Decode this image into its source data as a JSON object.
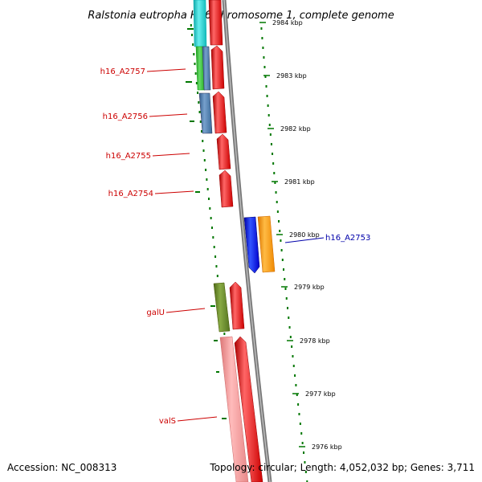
{
  "title": "Ralstonia eutropha H16 chromosome 1, complete genome",
  "footer": {
    "accession": "Accession: NC_008313",
    "topology": "Topology: circular; Length: 4,052,032 bp; Genes: 3,711"
  },
  "ticks": [
    "2984 kbp",
    "2983 kbp",
    "2982 kbp",
    "2981 kbp",
    "2980 kbp",
    "2979 kbp",
    "2978 kbp",
    "2977 kbp",
    "2976 kbp"
  ],
  "labels": [
    {
      "text": "h16_A2757",
      "color": "#cc0000"
    },
    {
      "text": "h16_A2756",
      "color": "#cc0000"
    },
    {
      "text": "h16_A2755",
      "color": "#cc0000"
    },
    {
      "text": "h16_A2754",
      "color": "#cc0000"
    },
    {
      "text": "h16_A2753",
      "color": "#0000aa"
    },
    {
      "text": "galU",
      "color": "#cc0000"
    },
    {
      "text": "valS",
      "color": "#cc0000"
    }
  ],
  "colors": {
    "cds_forward": "#ff0000",
    "cds_reverse_blue": "#0000ff",
    "cds_orange": "#ff9900",
    "cds_green": "#33bb33",
    "cds_steelblue": "#4477aa",
    "cds_cyan": "#22cccc",
    "cds_olive": "#668822",
    "cds_pink": "#ee8888",
    "backbone": "#888888",
    "gc_plot": "#007700"
  }
}
